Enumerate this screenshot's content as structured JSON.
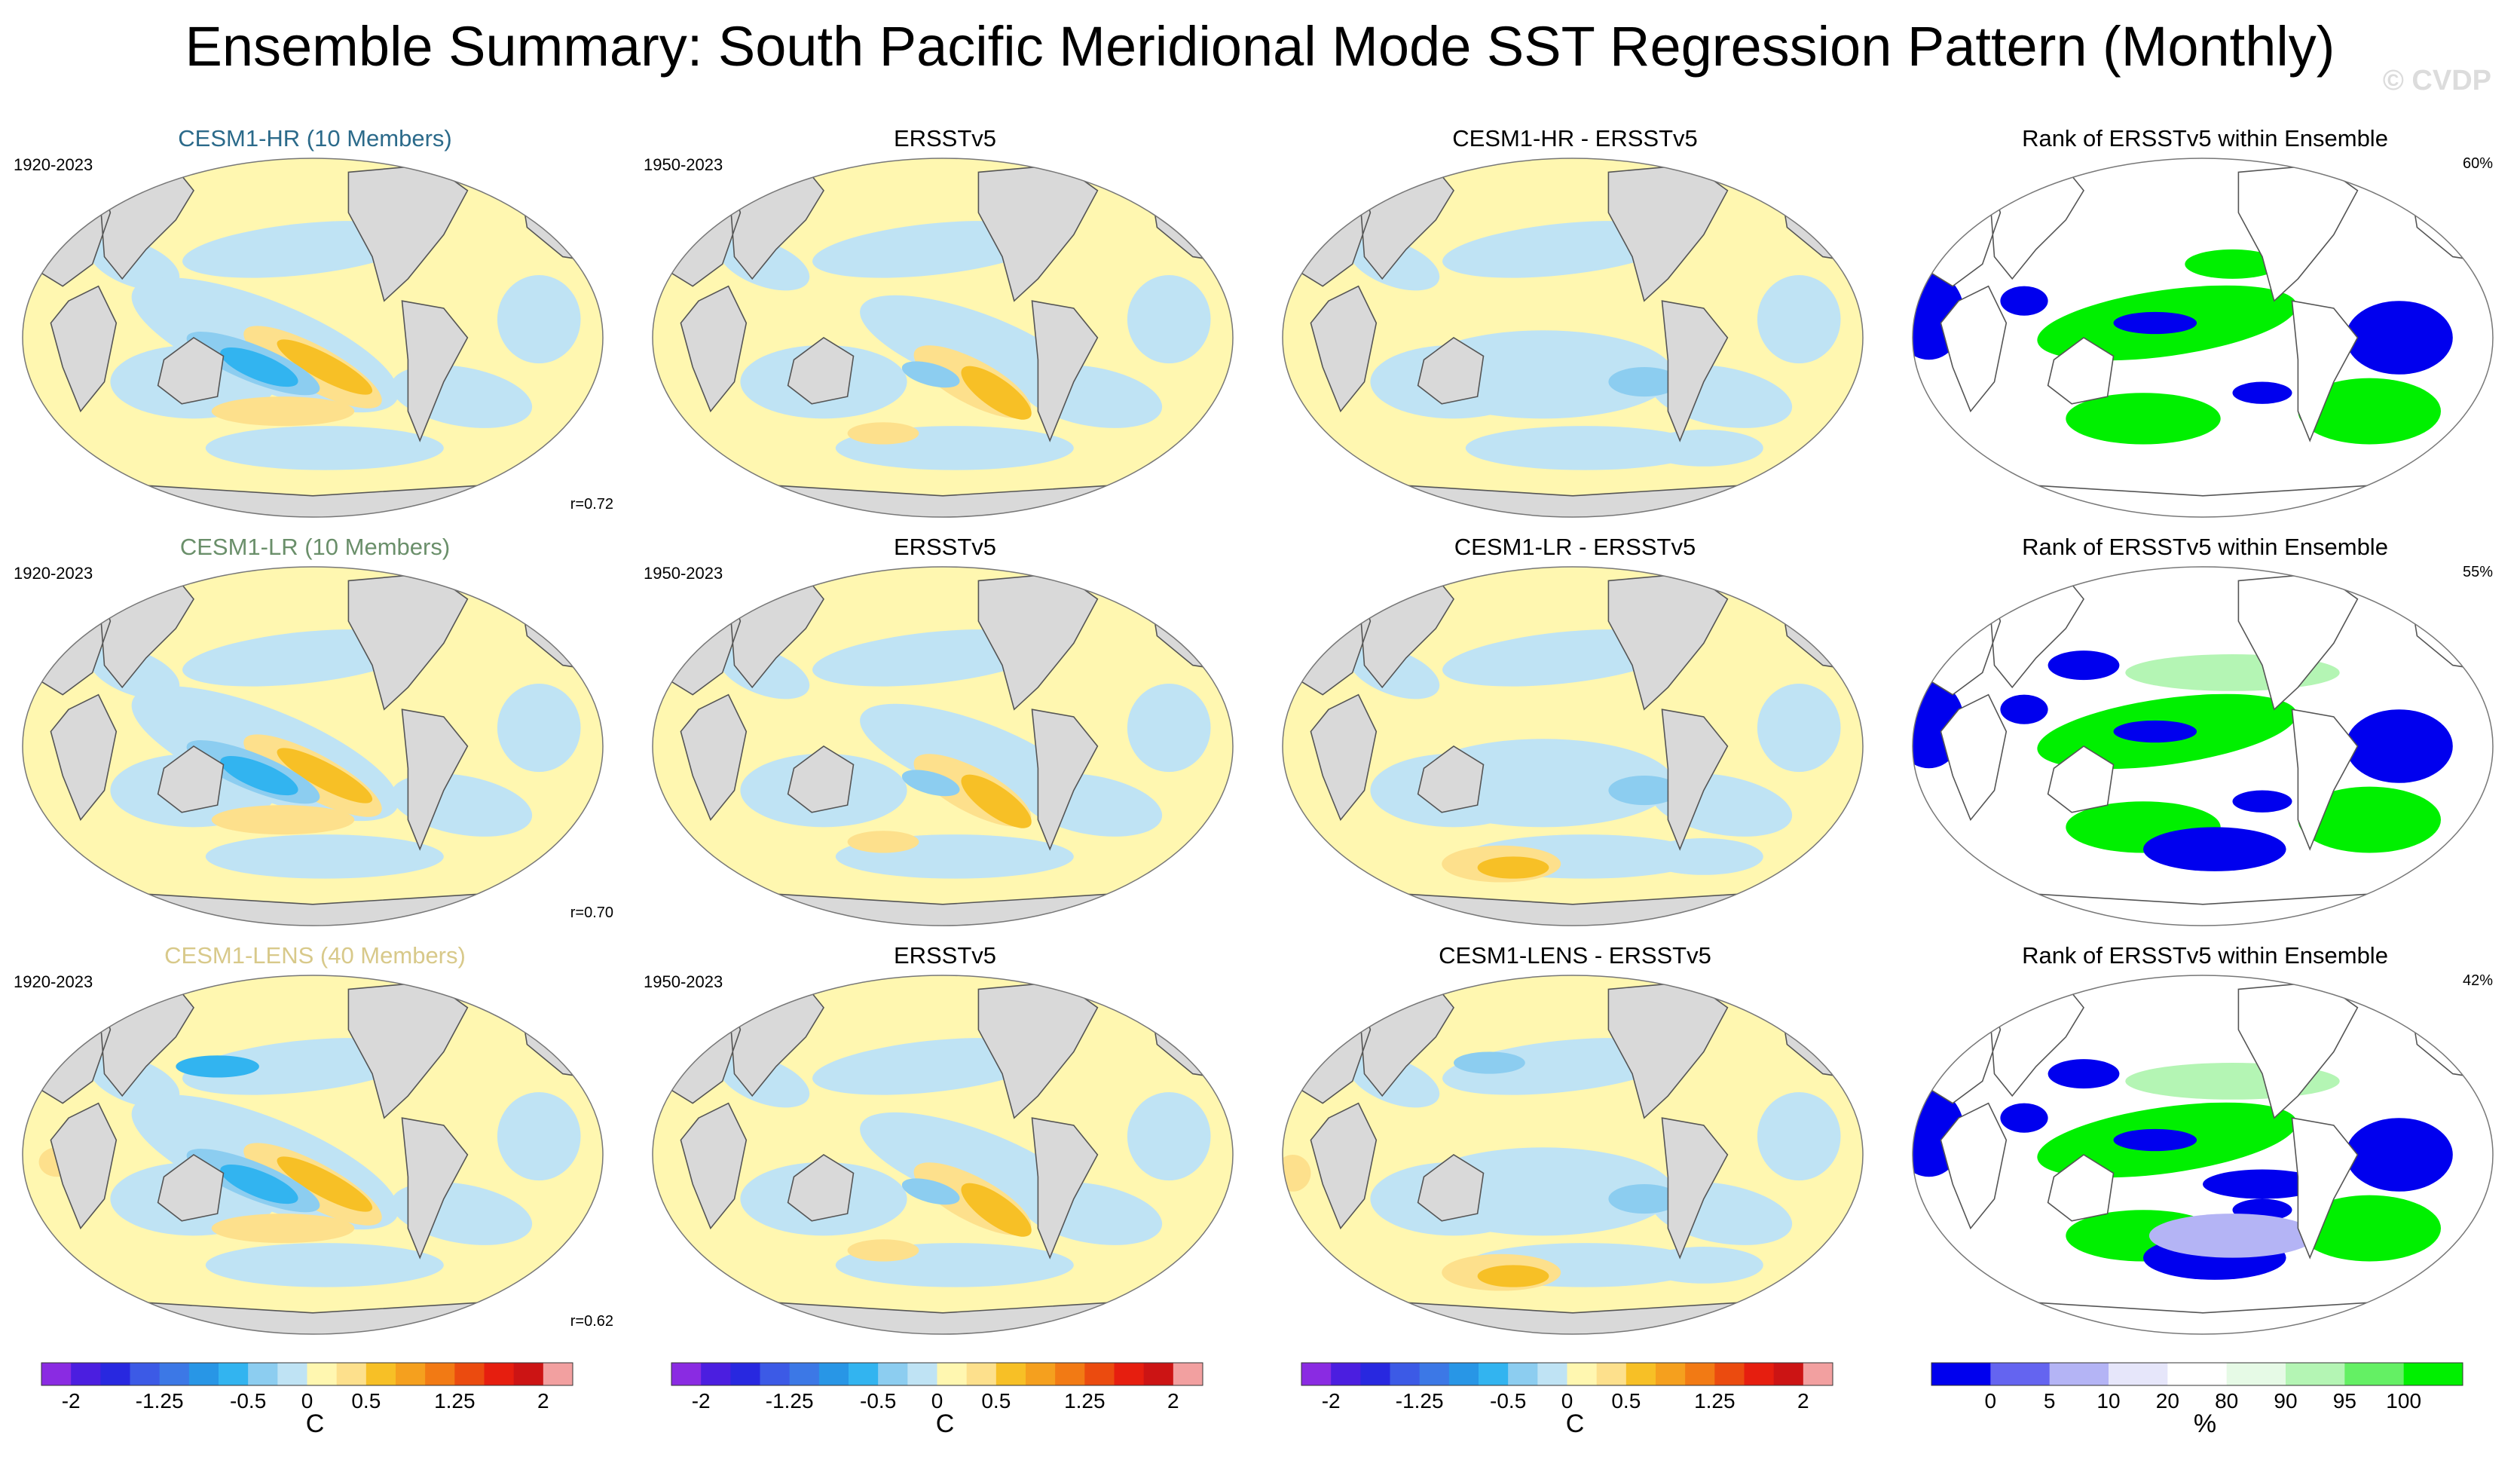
{
  "title": "Ensemble Summary: South Pacific Meridional Mode SST Regression Pattern (Monthly)",
  "watermark": "© CVDP",
  "chart_data": {
    "type": "heatmap",
    "title": "Ensemble Summary: South Pacific Meridional Mode SST Regression Pattern (Monthly)",
    "rows": [
      {
        "model": {
          "title": "CESM1-HR (10 Members)",
          "title_color": "#2b6a8a",
          "period": "1920-2023",
          "corr": "r=0.72"
        },
        "obs": {
          "title": "ERSSTv5",
          "period": "1950-2023"
        },
        "diff": {
          "title": "CESM1-HR - ERSSTv5"
        },
        "rank": {
          "title": "Rank of ERSSTv5 within Ensemble",
          "pct": "60%"
        }
      },
      {
        "model": {
          "title": "CESM1-LR (10 Members)",
          "title_color": "#6a8f6a",
          "period": "1920-2023",
          "corr": "r=0.70"
        },
        "obs": {
          "title": "ERSSTv5",
          "period": "1950-2023"
        },
        "diff": {
          "title": "CESM1-LR - ERSSTv5"
        },
        "rank": {
          "title": "Rank of ERSSTv5 within Ensemble",
          "pct": "55%"
        }
      },
      {
        "model": {
          "title": "CESM1-LENS (40 Members)",
          "title_color": "#d8c98a",
          "period": "1920-2023",
          "corr": "r=0.62"
        },
        "obs": {
          "title": "ERSSTv5",
          "period": "1950-2023"
        },
        "diff": {
          "title": "CESM1-LENS - ERSSTv5"
        },
        "rank": {
          "title": "Rank of ERSSTv5 within Ensemble",
          "pct": "42%"
        }
      }
    ],
    "sst_scale": {
      "units": "C",
      "tick_labels": [
        "-2",
        "-1.25",
        "-0.5",
        "0",
        "0.5",
        "1.25",
        "2"
      ],
      "tick_values": [
        -2,
        -1.25,
        -0.5,
        0,
        0.5,
        1.25,
        2
      ],
      "levels": [
        -2,
        -1.75,
        -1.5,
        -1.25,
        -1,
        -0.75,
        -0.5,
        -0.25,
        0,
        0.25,
        0.5,
        0.75,
        1,
        1.25,
        1.5,
        1.75,
        2
      ],
      "colors": [
        "#8a2be2",
        "#4b1ee0",
        "#2828e0",
        "#3c5ae6",
        "#3c78e6",
        "#2896e6",
        "#32b4f0",
        "#8ccdf0",
        "#bfe3f4",
        "#fff7b0",
        "#fde08c",
        "#f7c026",
        "#f5a01e",
        "#f27a14",
        "#eb4b0f",
        "#e61e0f",
        "#cc1414",
        "#f2a0a0"
      ]
    },
    "rank_scale": {
      "units": "%",
      "tick_labels": [
        "0",
        "5",
        "10",
        "20",
        "80",
        "90",
        "95",
        "100"
      ],
      "tick_values": [
        0,
        5,
        10,
        20,
        80,
        90,
        95,
        100
      ],
      "colors": [
        "#0000ee",
        "#6464f0",
        "#b4b4f5",
        "#e6e6fa",
        "#ffffff",
        "#e6fae6",
        "#b4f5b4",
        "#64f064",
        "#00f000"
      ]
    },
    "colorbars": [
      "sst",
      "sst",
      "sst",
      "rank"
    ]
  }
}
